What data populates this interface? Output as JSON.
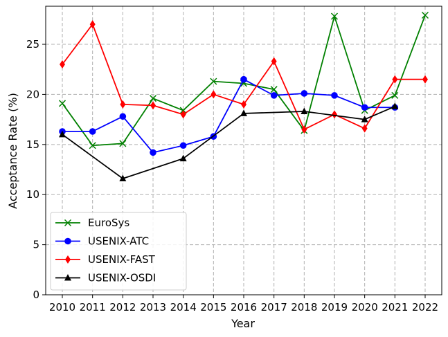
{
  "chart_data": {
    "type": "line",
    "xlabel": "Year",
    "ylabel": "Acceptance Rate (%)",
    "xlim": [
      2009.45,
      2022.55
    ],
    "ylim": [
      0,
      28.8
    ],
    "xticks": [
      "2010",
      "2011",
      "2012",
      "2013",
      "2014",
      "2015",
      "2016",
      "2017",
      "2018",
      "2019",
      "2020",
      "2021",
      "2022"
    ],
    "yticks": [
      "0",
      "5",
      "10",
      "15",
      "20",
      "25"
    ],
    "grid": true,
    "legend_position": "lower-left",
    "series": [
      {
        "name": "EuroSys",
        "color": "#008000",
        "marker": "x",
        "points": [
          [
            2010,
            19.1
          ],
          [
            2011,
            14.9
          ],
          [
            2012,
            15.1
          ],
          [
            2013,
            19.6
          ],
          [
            2014,
            18.4
          ],
          [
            2015,
            21.3
          ],
          [
            2016,
            21.1
          ],
          [
            2017,
            20.5
          ],
          [
            2018,
            16.4
          ],
          [
            2019,
            27.8
          ],
          [
            2020,
            18.4
          ],
          [
            2021,
            19.9
          ],
          [
            2022,
            27.9
          ]
        ]
      },
      {
        "name": "USENIX-ATC",
        "color": "#0000ff",
        "marker": "circle",
        "points": [
          [
            2010,
            16.3
          ],
          [
            2011,
            16.3
          ],
          [
            2012,
            17.8
          ],
          [
            2013,
            14.2
          ],
          [
            2014,
            14.9
          ],
          [
            2015,
            15.8
          ],
          [
            2016,
            21.5
          ],
          [
            2017,
            19.9
          ],
          [
            2018,
            20.1
          ],
          [
            2019,
            19.9
          ],
          [
            2020,
            18.7
          ],
          [
            2021,
            18.7
          ]
        ]
      },
      {
        "name": "USENIX-FAST",
        "color": "#ff0000",
        "marker": "diamond",
        "points": [
          [
            2010,
            23.0
          ],
          [
            2011,
            27.0
          ],
          [
            2012,
            19.0
          ],
          [
            2013,
            18.9
          ],
          [
            2014,
            18.0
          ],
          [
            2015,
            20.0
          ],
          [
            2016,
            19.0
          ],
          [
            2017,
            23.3
          ],
          [
            2018,
            16.5
          ],
          [
            2019,
            18.0
          ],
          [
            2020,
            16.6
          ],
          [
            2021,
            21.5
          ],
          [
            2022,
            21.5
          ]
        ]
      },
      {
        "name": "USENIX-OSDI",
        "color": "#000000",
        "marker": "triangle",
        "points": [
          [
            2010,
            16.0
          ],
          [
            2012,
            11.6
          ],
          [
            2014,
            13.6
          ],
          [
            2016,
            18.1
          ],
          [
            2018,
            18.3
          ],
          [
            2020,
            17.5
          ],
          [
            2021,
            18.8
          ]
        ]
      }
    ]
  }
}
